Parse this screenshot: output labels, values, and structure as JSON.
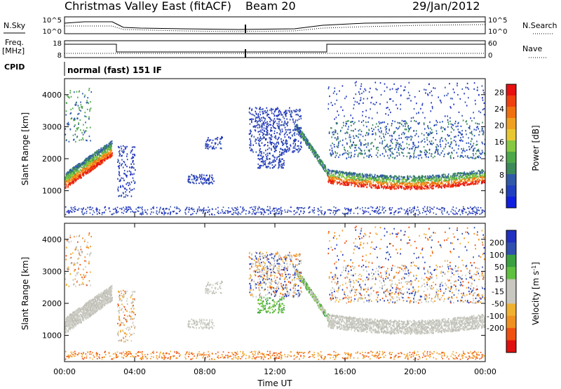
{
  "header": {
    "title": "Christmas Valley East (fitACF)",
    "beam": "Beam 20",
    "date": "29/Jan/2012"
  },
  "top_panels": {
    "nsky_label": "N.Sky",
    "nsearch_label": "N.Search",
    "noise_ticks": [
      "10^5",
      "10^0"
    ],
    "freq_label": "Freq.",
    "freq_unit": "[MHz]",
    "freq_ticks": [
      "18",
      "8"
    ],
    "nave_label": "Nave",
    "nave_ticks": [
      "60",
      "0"
    ],
    "cpid_label": "CPID",
    "cpid_value": "normal (fast) 151 IF"
  },
  "colors": {
    "power_scale": [
      "#1020e0",
      "#2040c0",
      "#305aa8",
      "#3c8a5a",
      "#4ea84a",
      "#86c840",
      "#e8c830",
      "#f0a020",
      "#f07010",
      "#f04010",
      "#e81010"
    ],
    "velocity_scale": [
      "#e01010",
      "#f05010",
      "#f09020",
      "#f0b030",
      "#c8c8c0",
      "#c8c8c0",
      "#60c040",
      "#3aa040",
      "#3050b0",
      "#2030c0"
    ]
  },
  "chart_data": [
    {
      "type": "heatmap",
      "name": "power-panel",
      "xlabel": "Time UT",
      "ylabel": "Slant Range [km]",
      "x_ticks": [
        "00:00",
        "04:00",
        "08:00",
        "12:00",
        "16:00",
        "20:00",
        "00:00"
      ],
      "x_range_hours": [
        0,
        24
      ],
      "y_ticks": [
        1000,
        2000,
        3000,
        4000
      ],
      "y_range_km": [
        180,
        4500
      ],
      "colorbar_label": "Power [dB]",
      "colorbar_ticks": [
        4,
        8,
        12,
        16,
        20,
        24,
        28
      ],
      "colorbar_range": [
        0,
        30
      ]
    },
    {
      "type": "heatmap",
      "name": "velocity-panel",
      "xlabel": "Time UT",
      "ylabel": "Slant Range [km]",
      "x_ticks": [
        "00:00",
        "04:00",
        "08:00",
        "12:00",
        "16:00",
        "20:00",
        "00:00"
      ],
      "x_range_hours": [
        0,
        24
      ],
      "y_ticks": [
        1000,
        2000,
        3000,
        4000
      ],
      "y_range_km": [
        180,
        4500
      ],
      "colorbar_label": "Velocity [m s",
      "colorbar_label_sup": "-1",
      "colorbar_label_end": "]",
      "colorbar_ticks": [
        "200",
        "100",
        "50",
        "15",
        "-15",
        "-50",
        "-100",
        "-200"
      ]
    }
  ]
}
